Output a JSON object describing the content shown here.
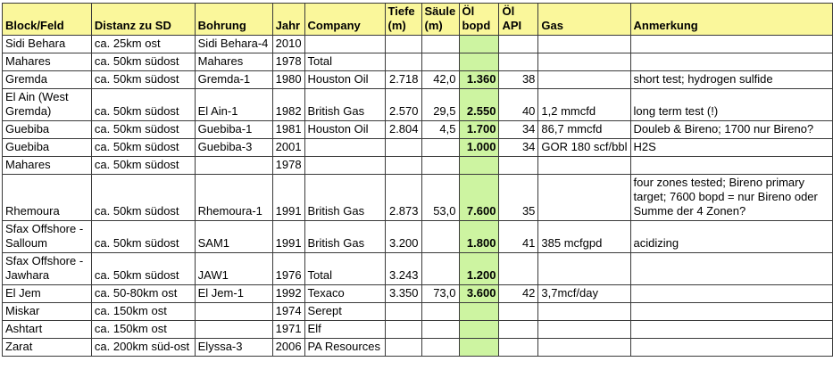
{
  "sheet": {
    "colors": {
      "header_fill": "#FAF79B",
      "bopd_fill": "#CDF4A1",
      "grid": "#3A3A3A",
      "text": "#000000"
    },
    "columns": [
      {
        "key": "block",
        "label": "Block/Feld"
      },
      {
        "key": "distanz",
        "label": "Distanz zu SD"
      },
      {
        "key": "bohrung",
        "label": "Bohrung"
      },
      {
        "key": "jahr",
        "label": "Jahr"
      },
      {
        "key": "company",
        "label": "Company"
      },
      {
        "key": "tiefe",
        "label": "Tiefe\n(m)"
      },
      {
        "key": "saeule",
        "label": "Säule\n(m)"
      },
      {
        "key": "bopd",
        "label": "Öl\nbopd"
      },
      {
        "key": "api",
        "label": "Öl\nAPI"
      },
      {
        "key": "gas",
        "label": "Gas"
      },
      {
        "key": "anmerkung",
        "label": "Anmerkung"
      }
    ],
    "rows": [
      {
        "block": "Sidi Behara",
        "distanz": "ca. 25km ost",
        "bohrung": "Sidi Behara-4",
        "jahr": "2010",
        "company": "",
        "tiefe": "",
        "saeule": "",
        "bopd": "",
        "api": "",
        "gas": "",
        "anmerkung": ""
      },
      {
        "block": "Mahares",
        "distanz": "ca. 50km südost",
        "bohrung": "Mahares",
        "jahr": "1978",
        "company": "Total",
        "tiefe": "",
        "saeule": "",
        "bopd": "",
        "api": "",
        "gas": "",
        "anmerkung": ""
      },
      {
        "block": "Gremda",
        "distanz": "ca. 50km südost",
        "bohrung": "Gremda-1",
        "jahr": "1980",
        "company": "Houston Oil",
        "tiefe": "2.718",
        "saeule": "42,0",
        "bopd": "1.360",
        "api": "38",
        "gas": "",
        "anmerkung": "short test; hydrogen sulfide"
      },
      {
        "block": "El Ain (West Gremda)",
        "distanz": "ca. 50km südost",
        "bohrung": "El Ain-1",
        "jahr": "1982",
        "company": "British Gas",
        "tiefe": "2.570",
        "saeule": "29,5",
        "bopd": "2.550",
        "api": "40",
        "gas": "1,2 mmcfd",
        "anmerkung": "long term test (!)"
      },
      {
        "block": "Guebiba",
        "distanz": "ca. 50km südost",
        "bohrung": "Guebiba-1",
        "jahr": "1981",
        "company": "Houston Oil",
        "tiefe": "2.804",
        "saeule": "4,5",
        "bopd": "1.700",
        "api": "34",
        "gas": "86,7 mmcfd",
        "anmerkung": "Douleb & Bireno; 1700 nur Bireno?"
      },
      {
        "block": "Guebiba",
        "distanz": "ca. 50km südost",
        "bohrung": "Guebiba-3",
        "jahr": "2001",
        "company": "",
        "tiefe": "",
        "saeule": "",
        "bopd": "1.000",
        "api": "34",
        "gas": "GOR 180 scf/bbl",
        "anmerkung": "H2S"
      },
      {
        "block": "Mahares",
        "distanz": "ca. 50km südost",
        "bohrung": "",
        "jahr": "1978",
        "company": "",
        "tiefe": "",
        "saeule": "",
        "bopd": "",
        "api": "",
        "gas": "",
        "anmerkung": ""
      },
      {
        "block": "Rhemoura",
        "distanz": "ca. 50km südost",
        "bohrung": "Rhemoura-1",
        "jahr": "1991",
        "company": "British Gas",
        "tiefe": "2.873",
        "saeule": "53,0",
        "bopd": "7.600",
        "api": "35",
        "gas": "",
        "anmerkung": "four zones tested; Bireno primary target; 7600 bopd = nur Bireno oder Summe der 4 Zonen?"
      },
      {
        "block": "Sfax Offshore - Salloum",
        "distanz": "ca. 50km südost",
        "bohrung": "SAM1",
        "jahr": "1991",
        "company": "British Gas",
        "tiefe": "3.200",
        "saeule": "",
        "bopd": "1.800",
        "api": "41",
        "gas": "385 mcfgpd",
        "anmerkung": "acidizing"
      },
      {
        "block": "Sfax Offshore - Jawhara",
        "distanz": "ca. 50km südost",
        "bohrung": "JAW1",
        "jahr": "1976",
        "company": "Total",
        "tiefe": "3.243",
        "saeule": "",
        "bopd": "1.200",
        "api": "",
        "gas": "",
        "anmerkung": ""
      },
      {
        "block": "El Jem",
        "distanz": "ca. 50-80km ost",
        "bohrung": "El Jem-1",
        "jahr": "1992",
        "company": "Texaco",
        "tiefe": "3.350",
        "saeule": "73,0",
        "bopd": "3.600",
        "api": "42",
        "gas": "3,7mcf/day",
        "anmerkung": ""
      },
      {
        "block": "Miskar",
        "distanz": "ca. 150km ost",
        "bohrung": "",
        "jahr": "1974",
        "company": "Serept",
        "tiefe": "",
        "saeule": "",
        "bopd": "",
        "api": "",
        "gas": "",
        "anmerkung": ""
      },
      {
        "block": "Ashtart",
        "distanz": "ca. 150km ost",
        "bohrung": "",
        "jahr": "1971",
        "company": "Elf",
        "tiefe": "",
        "saeule": "",
        "bopd": "",
        "api": "",
        "gas": "",
        "anmerkung": ""
      },
      {
        "block": "Zarat",
        "distanz": "ca. 200km süd-ost",
        "bohrung": "Elyssa-3",
        "jahr": "2006",
        "company": "PA Resources",
        "tiefe": "",
        "saeule": "",
        "bopd": "",
        "api": "",
        "gas": "",
        "anmerkung": ""
      }
    ]
  }
}
